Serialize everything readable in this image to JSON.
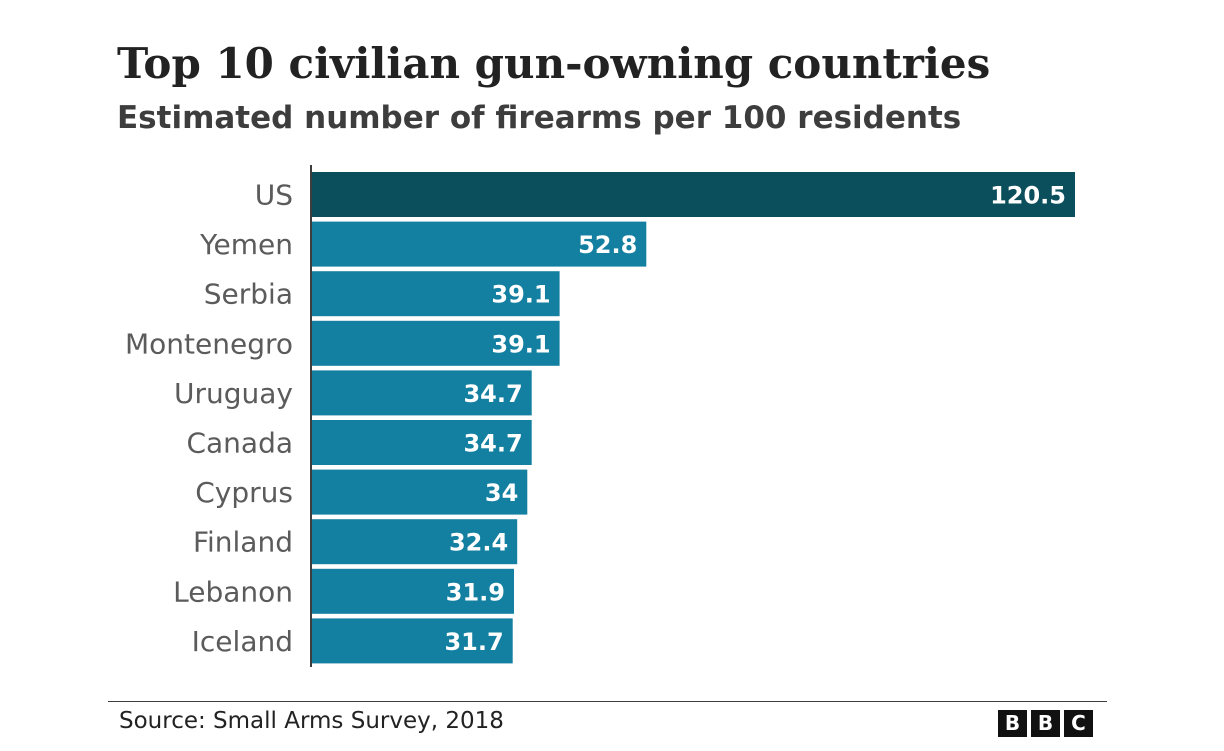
{
  "header": {
    "title": "Top 10 civilian gun-owning countries",
    "subtitle": "Estimated number of firearms per 100 residents"
  },
  "chart_data": {
    "type": "bar",
    "orientation": "horizontal",
    "title": "Top 10 civilian gun-owning countries",
    "subtitle": "Estimated number of firearms per 100 residents",
    "categories": [
      "US",
      "Yemen",
      "Serbia",
      "Montenegro",
      "Uruguay",
      "Canada",
      "Cyprus",
      "Finland",
      "Lebanon",
      "Iceland"
    ],
    "values": [
      120.5,
      52.8,
      39.1,
      39.1,
      34.7,
      34.7,
      34,
      32.4,
      31.9,
      31.7
    ],
    "value_labels": [
      "120.5",
      "52.8",
      "39.1",
      "39.1",
      "34.7",
      "34.7",
      "34",
      "32.4",
      "31.9",
      "31.7"
    ],
    "xlim": [
      0,
      120.5
    ],
    "grid": false,
    "legend": "none",
    "data_labels": "inside-end",
    "highlight_index": 0,
    "colors": {
      "highlight": "#0b4f5c",
      "bar": "#1380a1",
      "label": "#ffffff",
      "category_text": "#5b5b5b",
      "axis": "#3d3d3d"
    }
  },
  "footer": {
    "source": "Source: Small Arms Survey, 2018",
    "logo_letters": [
      "B",
      "B",
      "C"
    ]
  }
}
